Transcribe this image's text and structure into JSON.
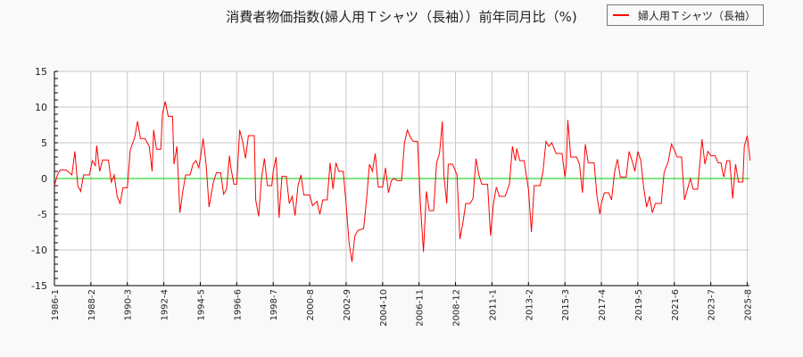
{
  "title": "消費者物価指数(婦人用Ｔシャツ（長袖））前年同月比（%)",
  "legend": {
    "items": [
      {
        "label": "婦人用Ｔシャツ（長袖）",
        "color": "#ff0000"
      }
    ]
  },
  "chart_data": {
    "type": "line",
    "title": "消費者物価指数(婦人用Ｔシャツ（長袖））前年同月比（%)",
    "xlabel": "",
    "ylabel": "",
    "ylim": [
      -15,
      15
    ],
    "yticks": [
      -15,
      -10,
      -5,
      0,
      5,
      10,
      15
    ],
    "xticks": [
      "1986-1",
      "1988-2",
      "1990-3",
      "1992-4",
      "1994-5",
      "1996-6",
      "1998-7",
      "2000-8",
      "2002-9",
      "2004-10",
      "2006-11",
      "2008-12",
      "2011-1",
      "2013-2",
      "2015-3",
      "2017-4",
      "2019-5",
      "2021-6",
      "2023-7",
      "2025-8"
    ],
    "grid": true,
    "zero_line_color": "#00cc00",
    "legend_position": "top-right",
    "series": [
      {
        "name": "婦人用Ｔシャツ（長袖）",
        "color": "#ff0000",
        "points": [
          [
            "1986-1",
            -1.0
          ],
          [
            "1986-3",
            0.5
          ],
          [
            "1986-5",
            1.2
          ],
          [
            "1986-9",
            1.2
          ],
          [
            "1987-1",
            0.5
          ],
          [
            "1987-3",
            3.8
          ],
          [
            "1987-5",
            -1.0
          ],
          [
            "1987-7",
            -1.8
          ],
          [
            "1987-9",
            0.5
          ],
          [
            "1988-1",
            0.5
          ],
          [
            "1988-3",
            2.5
          ],
          [
            "1988-5",
            1.8
          ],
          [
            "1988-6",
            4.6
          ],
          [
            "1988-8",
            1.0
          ],
          [
            "1988-10",
            2.6
          ],
          [
            "1989-2",
            2.6
          ],
          [
            "1989-4",
            -0.5
          ],
          [
            "1989-6",
            0.5
          ],
          [
            "1989-8",
            -2.5
          ],
          [
            "1989-10",
            -3.5
          ],
          [
            "1989-12",
            -1.3
          ],
          [
            "1990-3",
            -1.3
          ],
          [
            "1990-5",
            4.0
          ],
          [
            "1990-8",
            5.7
          ],
          [
            "1990-10",
            8.0
          ],
          [
            "1990-12",
            5.6
          ],
          [
            "1991-3",
            5.6
          ],
          [
            "1991-6",
            4.5
          ],
          [
            "1991-8",
            1.0
          ],
          [
            "1991-9",
            6.8
          ],
          [
            "1991-11",
            4.1
          ],
          [
            "1992-2",
            4.1
          ],
          [
            "1992-3",
            9.0
          ],
          [
            "1992-5",
            10.8
          ],
          [
            "1992-7",
            8.7
          ],
          [
            "1992-10",
            8.7
          ],
          [
            "1992-11",
            2.0
          ],
          [
            "1993-1",
            4.5
          ],
          [
            "1993-3",
            -4.8
          ],
          [
            "1993-5",
            -1.8
          ],
          [
            "1993-7",
            0.5
          ],
          [
            "1993-10",
            0.5
          ],
          [
            "1993-12",
            2.0
          ],
          [
            "1994-2",
            2.5
          ],
          [
            "1994-4",
            1.5
          ],
          [
            "1994-5",
            2.8
          ],
          [
            "1994-7",
            5.6
          ],
          [
            "1994-9",
            2.0
          ],
          [
            "1994-11",
            -4.0
          ],
          [
            "1995-2",
            -0.5
          ],
          [
            "1995-4",
            0.8
          ],
          [
            "1995-7",
            0.8
          ],
          [
            "1995-9",
            -2.2
          ],
          [
            "1995-11",
            -1.5
          ],
          [
            "1996-1",
            3.2
          ],
          [
            "1996-2",
            1.5
          ],
          [
            "1996-4",
            -0.8
          ],
          [
            "1996-6",
            -0.8
          ],
          [
            "1996-8",
            6.8
          ],
          [
            "1996-10",
            5.2
          ],
          [
            "1996-12",
            2.8
          ],
          [
            "1997-2",
            6.0
          ],
          [
            "1997-6",
            6.0
          ],
          [
            "1997-7",
            -3.0
          ],
          [
            "1997-9",
            -5.3
          ],
          [
            "1997-11",
            0.0
          ],
          [
            "1998-1",
            2.8
          ],
          [
            "1998-3",
            -1.0
          ],
          [
            "1998-6",
            -1.0
          ],
          [
            "1998-7",
            1.0
          ],
          [
            "1998-9",
            3.0
          ],
          [
            "1998-11",
            -5.5
          ],
          [
            "1999-1",
            0.3
          ],
          [
            "1999-4",
            0.3
          ],
          [
            "1999-6",
            -3.5
          ],
          [
            "1999-8",
            -2.5
          ],
          [
            "1999-10",
            -5.2
          ],
          [
            "1999-12",
            -1.0
          ],
          [
            "2000-2",
            0.5
          ],
          [
            "2000-4",
            -2.3
          ],
          [
            "2000-8",
            -2.3
          ],
          [
            "2000-10",
            -3.8
          ],
          [
            "2001-1",
            -3.2
          ],
          [
            "2001-3",
            -5.0
          ],
          [
            "2001-5",
            -3.0
          ],
          [
            "2001-8",
            -3.0
          ],
          [
            "2001-10",
            2.2
          ],
          [
            "2001-12",
            -1.5
          ],
          [
            "2002-2",
            2.2
          ],
          [
            "2002-4",
            1.0
          ],
          [
            "2002-7",
            1.0
          ],
          [
            "2002-9",
            -3.5
          ],
          [
            "2002-11",
            -9.0
          ],
          [
            "2003-1",
            -11.7
          ],
          [
            "2003-3",
            -8.0
          ],
          [
            "2003-5",
            -7.3
          ],
          [
            "2003-9",
            -7.0
          ],
          [
            "2003-11",
            -3.0
          ],
          [
            "2004-1",
            2.0
          ],
          [
            "2004-3",
            1.0
          ],
          [
            "2004-5",
            3.5
          ],
          [
            "2004-7",
            -1.2
          ],
          [
            "2004-10",
            -1.2
          ],
          [
            "2004-12",
            1.5
          ],
          [
            "2005-2",
            -2.0
          ],
          [
            "2005-4",
            -0.3
          ],
          [
            "2005-6",
            0.0
          ],
          [
            "2005-8",
            -0.3
          ],
          [
            "2005-11",
            -0.3
          ],
          [
            "2006-1",
            5.0
          ],
          [
            "2006-3",
            6.8
          ],
          [
            "2006-5",
            5.8
          ],
          [
            "2006-7",
            5.2
          ],
          [
            "2006-10",
            5.2
          ],
          [
            "2006-12",
            -3.8
          ],
          [
            "2007-2",
            -10.3
          ],
          [
            "2007-4",
            -1.8
          ],
          [
            "2007-6",
            -4.5
          ],
          [
            "2007-9",
            -4.5
          ],
          [
            "2007-11",
            2.2
          ],
          [
            "2008-1",
            3.5
          ],
          [
            "2008-3",
            8.0
          ],
          [
            "2008-4",
            0.5
          ],
          [
            "2008-6",
            -3.5
          ],
          [
            "2008-7",
            2.0
          ],
          [
            "2008-10",
            2.0
          ],
          [
            "2009-1",
            0.5
          ],
          [
            "2009-3",
            -8.5
          ],
          [
            "2009-5",
            -6.3
          ],
          [
            "2009-7",
            -3.5
          ],
          [
            "2009-10",
            -3.5
          ],
          [
            "2009-12",
            -2.8
          ],
          [
            "2010-2",
            2.8
          ],
          [
            "2010-4",
            0.5
          ],
          [
            "2010-6",
            -0.8
          ],
          [
            "2010-10",
            -0.8
          ],
          [
            "2010-12",
            -8.0
          ],
          [
            "2011-2",
            -3.5
          ],
          [
            "2011-4",
            -1.2
          ],
          [
            "2011-6",
            -2.5
          ],
          [
            "2011-10",
            -2.5
          ],
          [
            "2012-1",
            -0.8
          ],
          [
            "2012-3",
            4.5
          ],
          [
            "2012-5",
            2.5
          ],
          [
            "2012-6",
            4.2
          ],
          [
            "2012-8",
            2.5
          ],
          [
            "2012-11",
            2.5
          ],
          [
            "2013-2",
            -1.5
          ],
          [
            "2013-4",
            -7.5
          ],
          [
            "2013-6",
            -1.0
          ],
          [
            "2013-10",
            -1.0
          ],
          [
            "2013-12",
            1.0
          ],
          [
            "2014-2",
            5.2
          ],
          [
            "2014-4",
            4.5
          ],
          [
            "2014-6",
            5.0
          ],
          [
            "2014-9",
            3.5
          ],
          [
            "2015-1",
            3.5
          ],
          [
            "2015-3",
            0.2
          ],
          [
            "2015-4",
            2.0
          ],
          [
            "2015-5",
            8.2
          ],
          [
            "2015-7",
            3.0
          ],
          [
            "2015-11",
            3.0
          ],
          [
            "2016-1",
            2.0
          ],
          [
            "2016-3",
            -2.0
          ],
          [
            "2016-5",
            4.8
          ],
          [
            "2016-7",
            2.2
          ],
          [
            "2016-11",
            2.2
          ],
          [
            "2017-1",
            -2.5
          ],
          [
            "2017-3",
            -5.0
          ],
          [
            "2017-4",
            -3.5
          ],
          [
            "2017-6",
            -2.0
          ],
          [
            "2017-9",
            -2.0
          ],
          [
            "2017-11",
            -3.0
          ],
          [
            "2018-1",
            0.8
          ],
          [
            "2018-3",
            2.7
          ],
          [
            "2018-5",
            0.2
          ],
          [
            "2018-9",
            0.2
          ],
          [
            "2018-11",
            3.8
          ],
          [
            "2019-1",
            2.5
          ],
          [
            "2019-3",
            1.0
          ],
          [
            "2019-5",
            3.8
          ],
          [
            "2019-7",
            2.5
          ],
          [
            "2019-9",
            -1.2
          ],
          [
            "2019-11",
            -4.0
          ],
          [
            "2020-1",
            -2.5
          ],
          [
            "2020-3",
            -4.8
          ],
          [
            "2020-5",
            -3.5
          ],
          [
            "2020-9",
            -3.5
          ],
          [
            "2020-11",
            0.8
          ],
          [
            "2021-2",
            2.5
          ],
          [
            "2021-4",
            4.8
          ],
          [
            "2021-6",
            4.0
          ],
          [
            "2021-8",
            3.0
          ],
          [
            "2021-11",
            3.0
          ],
          [
            "2022-1",
            -3.0
          ],
          [
            "2022-3",
            -1.5
          ],
          [
            "2022-5",
            0.0
          ],
          [
            "2022-7",
            -1.5
          ],
          [
            "2022-10",
            -1.5
          ],
          [
            "2023-1",
            5.5
          ],
          [
            "2023-3",
            2.0
          ],
          [
            "2023-5",
            3.8
          ],
          [
            "2023-7",
            3.2
          ],
          [
            "2023-10",
            3.2
          ],
          [
            "2023-12",
            2.2
          ],
          [
            "2024-2",
            2.2
          ],
          [
            "2024-3",
            1.0
          ],
          [
            "2024-4",
            0.2
          ],
          [
            "2024-6",
            2.5
          ],
          [
            "2024-8",
            2.5
          ],
          [
            "2024-10",
            -2.8
          ],
          [
            "2024-12",
            2.0
          ],
          [
            "2025-2",
            -0.5
          ],
          [
            "2025-5",
            -0.5
          ],
          [
            "2025-6",
            4.5
          ],
          [
            "2025-8",
            6.0
          ],
          [
            "2025-10",
            2.5
          ]
        ]
      }
    ]
  }
}
